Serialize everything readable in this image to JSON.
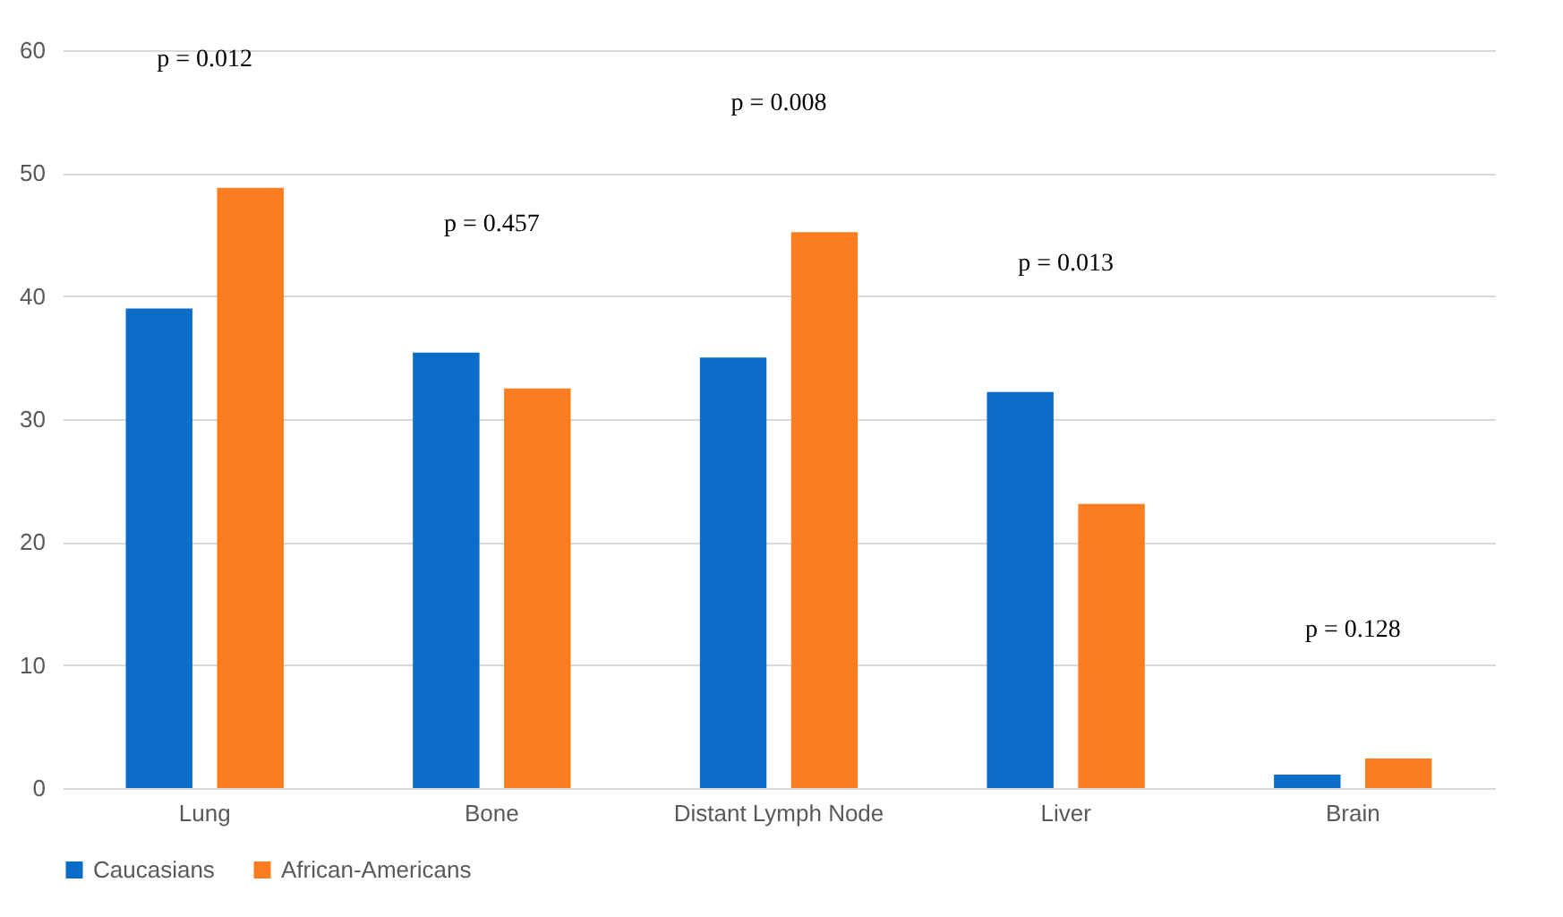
{
  "chart_data": {
    "type": "bar",
    "categories": [
      "Lung",
      "Bone",
      "Distant Lymph Node",
      "Liver",
      "Brain"
    ],
    "series": [
      {
        "name": "Caucasians",
        "color": "#0b6dc8",
        "values": [
          39.0,
          35.4,
          35.0,
          32.2,
          1.1
        ]
      },
      {
        "name": "African-Americans",
        "color": "#fb7d1f",
        "values": [
          48.8,
          32.5,
          45.2,
          23.1,
          2.4
        ]
      }
    ],
    "ylim": [
      0,
      60
    ],
    "yticks": [
      0,
      10,
      20,
      30,
      40,
      50,
      60
    ],
    "grid": "y",
    "legend": "bottom",
    "annotations": [
      "p = 0.012",
      "p = 0.457",
      "p = 0.008",
      "p = 0.013",
      "p = 0.128"
    ]
  }
}
